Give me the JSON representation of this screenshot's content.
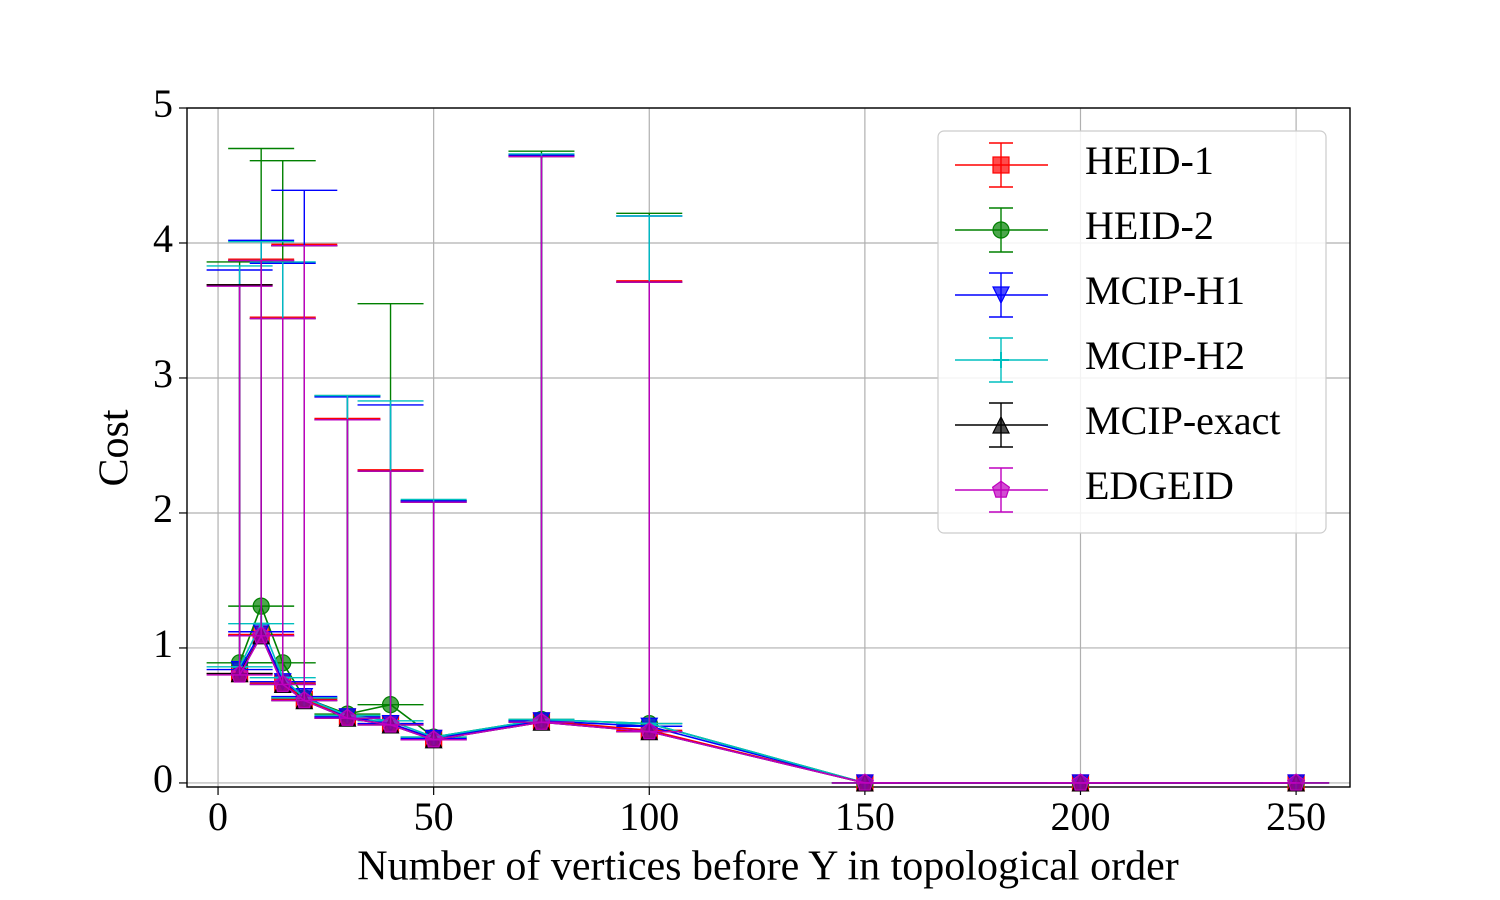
{
  "chart_data": {
    "type": "errorbar_line",
    "x_label": "Number of vertices before Y in topological order",
    "y_label": "Cost",
    "x": [
      5,
      10,
      15,
      20,
      30,
      40,
      50,
      75,
      100,
      150,
      200,
      250
    ],
    "xlim": [
      -7.2,
      262.5
    ],
    "xticks": [
      0,
      50,
      100,
      150,
      200,
      250
    ],
    "ylim": [
      -0.03,
      5
    ],
    "yticks": [
      0,
      1,
      2,
      3,
      4,
      5
    ],
    "grid": true,
    "legend": "upper right",
    "series": [
      {
        "name": "HEID-1",
        "color": "#ff0000",
        "marker": "square",
        "values": [
          0.81,
          1.1,
          0.74,
          0.62,
          0.49,
          0.44,
          0.33,
          0.46,
          0.39,
          0,
          0,
          0
        ],
        "yerr": [
          2.88,
          2.78,
          2.71,
          3.37,
          2.21,
          1.88,
          1.76,
          4.19,
          3.33,
          0,
          0,
          0
        ]
      },
      {
        "name": "HEID-2",
        "color": "#008000",
        "marker": "circle",
        "values": [
          0.89,
          1.31,
          0.89,
          0.63,
          0.51,
          0.58,
          0.34,
          0.47,
          0.44,
          0,
          0,
          0
        ],
        "yerr": [
          2.97,
          3.39,
          3.72,
          3.35,
          2.36,
          2.97,
          1.75,
          4.21,
          3.78,
          0,
          0,
          0
        ]
      },
      {
        "name": "MCIP-H1",
        "color": "#0000ff",
        "marker": "triangle-down",
        "values": [
          0.84,
          1.12,
          0.75,
          0.64,
          0.49,
          0.44,
          0.33,
          0.46,
          0.42,
          0,
          0,
          0
        ],
        "yerr": [
          2.96,
          2.9,
          3.1,
          3.75,
          2.37,
          2.36,
          1.76,
          4.19,
          3.78,
          0,
          0,
          0
        ]
      },
      {
        "name": "MCIP-H2",
        "color": "#00bfbf",
        "marker": "plus",
        "values": [
          0.86,
          1.18,
          0.78,
          0.63,
          0.5,
          0.46,
          0.34,
          0.47,
          0.44,
          0,
          0,
          0
        ],
        "yerr": [
          2.97,
          2.83,
          3.08,
          3.35,
          2.37,
          2.37,
          1.76,
          4.19,
          3.76,
          0,
          0,
          0
        ]
      },
      {
        "name": "MCIP-exact",
        "color": "#000000",
        "marker": "triangle-up",
        "values": [
          0.81,
          1.09,
          0.73,
          0.61,
          0.48,
          0.43,
          0.32,
          0.45,
          0.38,
          0,
          0,
          0
        ],
        "yerr": [
          2.88,
          2.78,
          2.71,
          3.37,
          2.21,
          1.88,
          1.76,
          4.19,
          3.33,
          0,
          0,
          0
        ]
      },
      {
        "name": "EDGEID",
        "color": "#bf00bf",
        "marker": "pentagon",
        "values": [
          0.8,
          1.09,
          0.73,
          0.61,
          0.48,
          0.43,
          0.32,
          0.45,
          0.38,
          0,
          0,
          0
        ],
        "yerr": [
          2.88,
          2.78,
          2.71,
          3.37,
          2.21,
          1.88,
          1.76,
          4.19,
          3.33,
          0,
          0,
          0
        ]
      }
    ]
  }
}
